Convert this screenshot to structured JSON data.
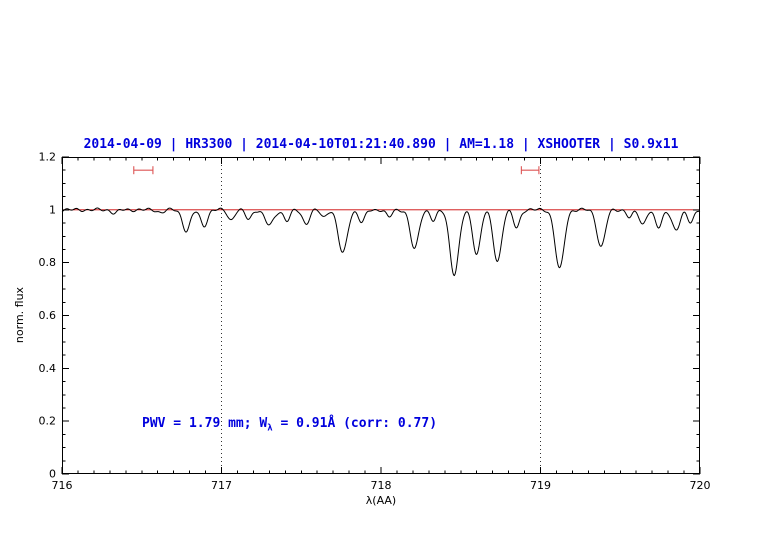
{
  "chart_data": {
    "type": "line",
    "title": "2014-04-09 | HR3300 | 2014-04-10T01:21:40.890 | AM=1.18 | XSHOOTER | S0.9x11",
    "xlabel": "λ(AA)",
    "ylabel": "norm. flux",
    "xlim": [
      716,
      720
    ],
    "ylim": [
      0,
      1.2
    ],
    "x_ticks": [
      716,
      717,
      718,
      719,
      720
    ],
    "x_tick_labels": [
      "716",
      "717",
      "718",
      "719",
      "720"
    ],
    "x_minor_step": 0.1,
    "y_ticks": [
      0,
      0.2,
      0.4,
      0.6,
      0.8,
      1,
      1.2
    ],
    "y_tick_labels": [
      "0",
      "0.2",
      "0.4",
      "0.6",
      "0.8",
      "1",
      "1.2"
    ],
    "y_minor_step": 0.05,
    "grid": false,
    "legend": "none",
    "continuum_level": 1.0,
    "dotted_vlines": [
      717,
      719
    ],
    "range_markers": [
      {
        "x_min": 716.45,
        "x_max": 716.57,
        "y": 1.15
      },
      {
        "x_min": 718.88,
        "x_max": 718.99,
        "y": 1.15
      }
    ],
    "absorption_lines_format": [
      "center_wavelength_AA",
      "depth_norm_flux",
      "sigma_AA"
    ],
    "absorption_lines": [
      [
        716.33,
        0.012,
        0.02
      ],
      [
        716.62,
        0.01,
        0.02
      ],
      [
        716.78,
        0.08,
        0.024
      ],
      [
        716.89,
        0.06,
        0.022
      ],
      [
        717.06,
        0.038,
        0.02
      ],
      [
        717.17,
        0.035,
        0.02
      ],
      [
        717.3,
        0.058,
        0.028
      ],
      [
        717.41,
        0.042,
        0.02
      ],
      [
        717.53,
        0.052,
        0.022
      ],
      [
        717.64,
        0.028,
        0.018
      ],
      [
        717.76,
        0.165,
        0.028
      ],
      [
        717.88,
        0.048,
        0.02
      ],
      [
        718.05,
        0.028,
        0.018
      ],
      [
        718.21,
        0.15,
        0.026
      ],
      [
        718.33,
        0.042,
        0.018
      ],
      [
        718.46,
        0.245,
        0.028
      ],
      [
        718.6,
        0.168,
        0.024
      ],
      [
        718.73,
        0.195,
        0.026
      ],
      [
        718.85,
        0.068,
        0.02
      ],
      [
        719.12,
        0.225,
        0.028
      ],
      [
        719.38,
        0.14,
        0.026
      ],
      [
        719.56,
        0.03,
        0.018
      ],
      [
        719.64,
        0.055,
        0.02
      ],
      [
        719.74,
        0.068,
        0.022
      ],
      [
        719.85,
        0.078,
        0.024
      ],
      [
        719.94,
        0.045,
        0.02
      ]
    ],
    "annotation": {
      "prefix": "PWV = 1.79 mm; W",
      "sub": "λ",
      "suffix": " = 0.91Å (corr: 0.77)"
    },
    "colors": {
      "title_blue": "#0000dd",
      "annotation_blue": "#0000dd",
      "continuum_red": "#cc0000",
      "marker_red": "#dd5555",
      "spectrum_black": "#000000"
    }
  }
}
